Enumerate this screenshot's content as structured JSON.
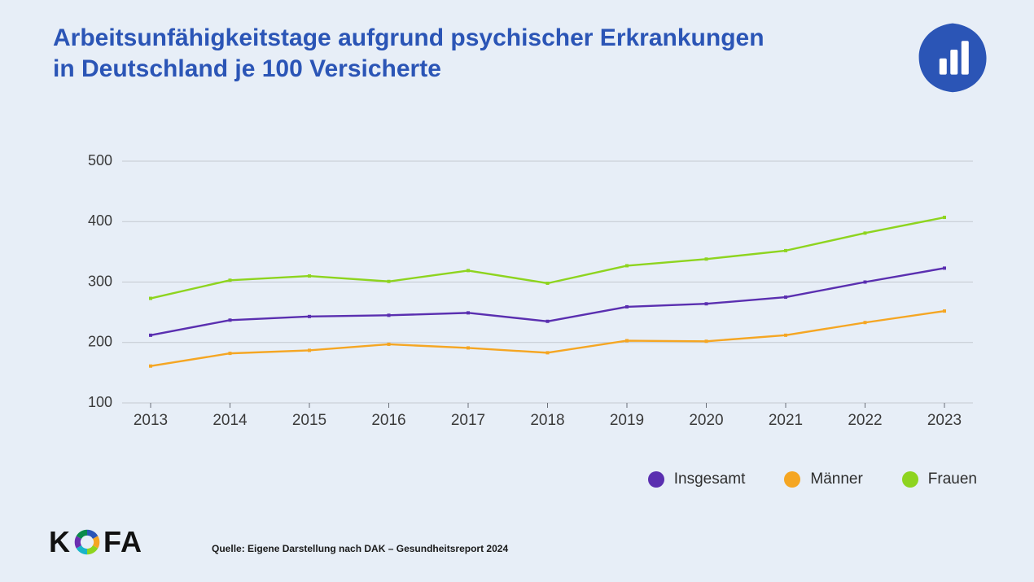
{
  "title": "Arbeitsunfähigkeitstage aufgrund psychischer Erkrankungen\nin Deutschland je 100 Versicherte",
  "title_color": "#2b55b6",
  "title_fontsize": 30,
  "background_color": "#e7eef7",
  "badge": {
    "fill": "#2b55b6",
    "bar_color": "#ffffff"
  },
  "chart": {
    "type": "line",
    "categories": [
      "2013",
      "2014",
      "2015",
      "2016",
      "2017",
      "2018",
      "2019",
      "2020",
      "2021",
      "2022",
      "2023"
    ],
    "ylim": [
      100,
      500
    ],
    "ytick_step": 100,
    "yticks": [
      100,
      200,
      300,
      400,
      500
    ],
    "grid_color": "#c4c9d0",
    "axis_color": "#6a6f78",
    "tick_font_color": "#3a3a3a",
    "xtick_fontsize": 19,
    "ytick_fontsize": 18,
    "line_width": 2.4,
    "marker_size": 4,
    "series": [
      {
        "key": "insgesamt",
        "label": "Insgesamt",
        "color": "#5a2fb0",
        "values": [
          212,
          237,
          243,
          245,
          249,
          235,
          259,
          264,
          275,
          300,
          323
        ]
      },
      {
        "key": "maenner",
        "label": "Männer",
        "color": "#f5a623",
        "values": [
          161,
          182,
          187,
          197,
          191,
          183,
          203,
          202,
          212,
          233,
          252
        ]
      },
      {
        "key": "frauen",
        "label": "Frauen",
        "color": "#8ed41f",
        "values": [
          273,
          303,
          310,
          301,
          319,
          298,
          327,
          338,
          352,
          381,
          407
        ]
      }
    ]
  },
  "legend": {
    "items": [
      {
        "label": "Insgesamt",
        "color": "#5a2fb0"
      },
      {
        "label": "Männer",
        "color": "#f5a623"
      },
      {
        "label": "Frauen",
        "color": "#8ed41f"
      }
    ],
    "fontsize": 19,
    "dot_size": 20
  },
  "logo": {
    "text_before": "K",
    "text_after": "FA",
    "ring_colors": [
      "#2b55b6",
      "#f5a623",
      "#8ed41f",
      "#1ab5c9",
      "#6a2fb0",
      "#0a8a4a"
    ]
  },
  "source": "Quelle: Eigene Darstellung nach DAK – Gesundheitsreport 2024"
}
